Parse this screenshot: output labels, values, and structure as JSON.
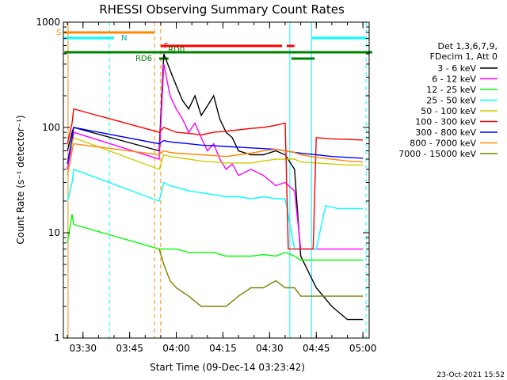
{
  "chart_data": {
    "type": "line",
    "title": "RHESSI Observing Summary Count Rates",
    "xlabel": "Start Time (09-Dec-14 03:23:42)",
    "ylabel": "Count Rate (s⁻¹ detector⁻¹)",
    "y_scale": "log",
    "ylim": [
      1,
      1000
    ],
    "xlim_minutes": [
      23.7,
      122
    ],
    "x_ticks": [
      "03:30",
      "03:45",
      "04:00",
      "04:15",
      "04:30",
      "04:45",
      "05:00"
    ],
    "y_ticks": [
      "1",
      "10",
      "100",
      "1000"
    ],
    "legend_header": [
      "Det 1,3,6,7,9,",
      "FDecim 1, Att 0"
    ],
    "legend_placement": "right-outside",
    "series": [
      {
        "name": "3 - 6 keV",
        "color": "#000000",
        "points": [
          [
            25,
            60
          ],
          [
            26.5,
            90
          ],
          [
            27,
            100
          ],
          [
            54.5,
            60
          ],
          [
            56,
            500
          ],
          [
            58,
            350
          ],
          [
            60,
            250
          ],
          [
            62,
            180
          ],
          [
            64,
            150
          ],
          [
            66,
            200
          ],
          [
            68,
            130
          ],
          [
            70,
            160
          ],
          [
            72,
            200
          ],
          [
            74,
            120
          ],
          [
            76,
            90
          ],
          [
            78,
            80
          ],
          [
            80,
            60
          ],
          [
            84,
            55
          ],
          [
            88,
            55
          ],
          [
            92,
            60
          ],
          [
            95,
            55
          ],
          [
            98,
            40
          ],
          [
            100,
            6
          ],
          [
            105,
            3
          ],
          [
            110,
            2
          ],
          [
            115,
            1.5
          ],
          [
            120,
            1.5
          ]
        ]
      },
      {
        "name": "6 - 12 keV",
        "color": "#ff00ff",
        "points": [
          [
            25,
            40
          ],
          [
            26.5,
            70
          ],
          [
            27,
            90
          ],
          [
            54.5,
            50
          ],
          [
            56,
            400
          ],
          [
            58,
            200
          ],
          [
            60,
            150
          ],
          [
            62,
            120
          ],
          [
            64,
            90
          ],
          [
            66,
            110
          ],
          [
            68,
            80
          ],
          [
            70,
            60
          ],
          [
            72,
            70
          ],
          [
            74,
            50
          ],
          [
            76,
            40
          ],
          [
            78,
            45
          ],
          [
            80,
            35
          ],
          [
            84,
            40
          ],
          [
            88,
            35
          ],
          [
            92,
            28
          ],
          [
            95,
            30
          ],
          [
            98,
            25
          ],
          [
            100,
            7
          ],
          [
            110,
            7
          ],
          [
            120,
            7
          ]
        ]
      },
      {
        "name": "12 - 25 keV",
        "color": "#00ff00",
        "points": [
          [
            25,
            8
          ],
          [
            26.5,
            15
          ],
          [
            27,
            12
          ],
          [
            54.5,
            7
          ],
          [
            56,
            7
          ],
          [
            58,
            7
          ],
          [
            60,
            7
          ],
          [
            64,
            6.5
          ],
          [
            68,
            6.5
          ],
          [
            72,
            6.5
          ],
          [
            76,
            6
          ],
          [
            80,
            6
          ],
          [
            84,
            6
          ],
          [
            88,
            6.2
          ],
          [
            92,
            6
          ],
          [
            95,
            6.5
          ],
          [
            98,
            6
          ],
          [
            100,
            5.5
          ],
          [
            110,
            5.5
          ],
          [
            120,
            5.5
          ]
        ]
      },
      {
        "name": "25 - 50 keV",
        "color": "#00ffff",
        "points": [
          [
            25,
            20
          ],
          [
            26.5,
            30
          ],
          [
            27,
            40
          ],
          [
            54.5,
            20
          ],
          [
            56,
            30
          ],
          [
            58,
            28
          ],
          [
            60,
            27
          ],
          [
            64,
            25
          ],
          [
            68,
            24
          ],
          [
            72,
            23
          ],
          [
            76,
            22
          ],
          [
            80,
            22
          ],
          [
            84,
            21
          ],
          [
            88,
            22
          ],
          [
            92,
            21
          ],
          [
            95,
            21
          ],
          [
            98,
            7
          ],
          [
            100,
            7
          ],
          [
            105,
            7
          ],
          [
            108,
            18
          ],
          [
            112,
            17
          ],
          [
            116,
            17
          ],
          [
            120,
            17
          ]
        ]
      },
      {
        "name": "50 - 100 keV",
        "color": "#cccc00",
        "points": [
          [
            25,
            50
          ],
          [
            26.5,
            70
          ],
          [
            27,
            80
          ],
          [
            54.5,
            40
          ],
          [
            56,
            55
          ],
          [
            58,
            53
          ],
          [
            60,
            52
          ],
          [
            64,
            50
          ],
          [
            68,
            48
          ],
          [
            72,
            47
          ],
          [
            76,
            46
          ],
          [
            80,
            46
          ],
          [
            84,
            46
          ],
          [
            88,
            48
          ],
          [
            92,
            50
          ],
          [
            95,
            50
          ],
          [
            98,
            50
          ],
          [
            100,
            47
          ],
          [
            105,
            46
          ],
          [
            110,
            45
          ],
          [
            115,
            44
          ],
          [
            120,
            44
          ]
        ]
      },
      {
        "name": "100 - 300 keV",
        "color": "#ff0000",
        "points": [
          [
            25,
            70
          ],
          [
            26.5,
            110
          ],
          [
            27,
            150
          ],
          [
            54.5,
            90
          ],
          [
            56,
            100
          ],
          [
            58,
            95
          ],
          [
            60,
            90
          ],
          [
            64,
            88
          ],
          [
            68,
            85
          ],
          [
            72,
            90
          ],
          [
            76,
            92
          ],
          [
            80,
            95
          ],
          [
            84,
            98
          ],
          [
            88,
            100
          ],
          [
            92,
            105
          ],
          [
            95,
            110
          ],
          [
            96,
            7
          ],
          [
            104,
            7
          ],
          [
            105,
            80
          ],
          [
            110,
            78
          ],
          [
            115,
            77
          ],
          [
            120,
            76
          ]
        ]
      },
      {
        "name": "300 - 800 keV",
        "color": "#0000ff",
        "points": [
          [
            25,
            45
          ],
          [
            26.5,
            80
          ],
          [
            27,
            100
          ],
          [
            54.5,
            70
          ],
          [
            56,
            75
          ],
          [
            58,
            73
          ],
          [
            60,
            72
          ],
          [
            64,
            70
          ],
          [
            68,
            68
          ],
          [
            72,
            67
          ],
          [
            76,
            66
          ],
          [
            80,
            65
          ],
          [
            84,
            64
          ],
          [
            88,
            63
          ],
          [
            92,
            62
          ],
          [
            95,
            60
          ],
          [
            98,
            58
          ],
          [
            100,
            57
          ],
          [
            105,
            55
          ],
          [
            110,
            53
          ],
          [
            115,
            52
          ],
          [
            120,
            51
          ]
        ]
      },
      {
        "name": "800 - 7000 keV",
        "color": "#ff8800",
        "points": [
          [
            25,
            35
          ],
          [
            26.5,
            60
          ],
          [
            27,
            70
          ],
          [
            54.5,
            55
          ],
          [
            56,
            60
          ],
          [
            58,
            58
          ],
          [
            60,
            57
          ],
          [
            64,
            56
          ],
          [
            68,
            55
          ],
          [
            72,
            54
          ],
          [
            76,
            53
          ],
          [
            80,
            55
          ],
          [
            84,
            57
          ],
          [
            88,
            60
          ],
          [
            92,
            62
          ],
          [
            95,
            60
          ],
          [
            98,
            58
          ],
          [
            100,
            55
          ],
          [
            105,
            52
          ],
          [
            110,
            50
          ],
          [
            115,
            48
          ],
          [
            120,
            47
          ]
        ]
      },
      {
        "name": "7000 - 15000 keV",
        "color": "#808000",
        "points": [
          [
            54.5,
            7
          ],
          [
            56,
            5
          ],
          [
            58,
            3.5
          ],
          [
            60,
            3
          ],
          [
            64,
            2.5
          ],
          [
            68,
            2
          ],
          [
            72,
            2
          ],
          [
            76,
            2
          ],
          [
            80,
            2.5
          ],
          [
            84,
            3
          ],
          [
            88,
            3
          ],
          [
            92,
            3.5
          ],
          [
            95,
            3
          ],
          [
            98,
            3
          ],
          [
            100,
            2.5
          ],
          [
            105,
            2.5
          ],
          [
            110,
            2.5
          ],
          [
            115,
            2.5
          ],
          [
            120,
            2.5
          ]
        ]
      }
    ],
    "vertical_markers": [
      {
        "x": 25.2,
        "color": "#ff8800",
        "style": "solid"
      },
      {
        "x": 38.5,
        "color": "#00ffff",
        "style": "dashed"
      },
      {
        "x": 53.0,
        "color": "#ff8800",
        "style": "dashed"
      },
      {
        "x": 55.0,
        "color": "#ff8800",
        "style": "dashed"
      },
      {
        "x": 96.5,
        "color": "#00ffff",
        "style": "solid"
      },
      {
        "x": 103.5,
        "color": "#00ffff",
        "style": "solid"
      },
      {
        "x": 121.0,
        "color": "#00ffff",
        "style": "dashed"
      }
    ],
    "flag_bars": [
      {
        "label": "S",
        "color": "#ff8800",
        "level": 1,
        "segments": [
          [
            24,
            53
          ]
        ]
      },
      {
        "label": "N",
        "color": "#00ffff",
        "level": 2,
        "segments": [
          [
            24,
            40
          ]
        ]
      },
      {
        "label": "F",
        "color": "#ff0000",
        "level": 3,
        "segments": [
          [
            55,
            94
          ],
          [
            95.5,
            98
          ]
        ]
      },
      {
        "label": "",
        "color": "#00ffff",
        "level": 2,
        "segments": [
          [
            103.5,
            121
          ]
        ]
      },
      {
        "label": "RD0",
        "color": "#008000",
        "level": 4,
        "segments": [
          [
            24,
            123
          ]
        ]
      },
      {
        "label": "RD6",
        "color": "#008000",
        "level": 5,
        "segments": [
          [
            54.5,
            57.5
          ],
          [
            97,
            104.5
          ]
        ]
      }
    ]
  },
  "footer": {
    "date_stamp": "23-Oct-2021 15:52"
  }
}
